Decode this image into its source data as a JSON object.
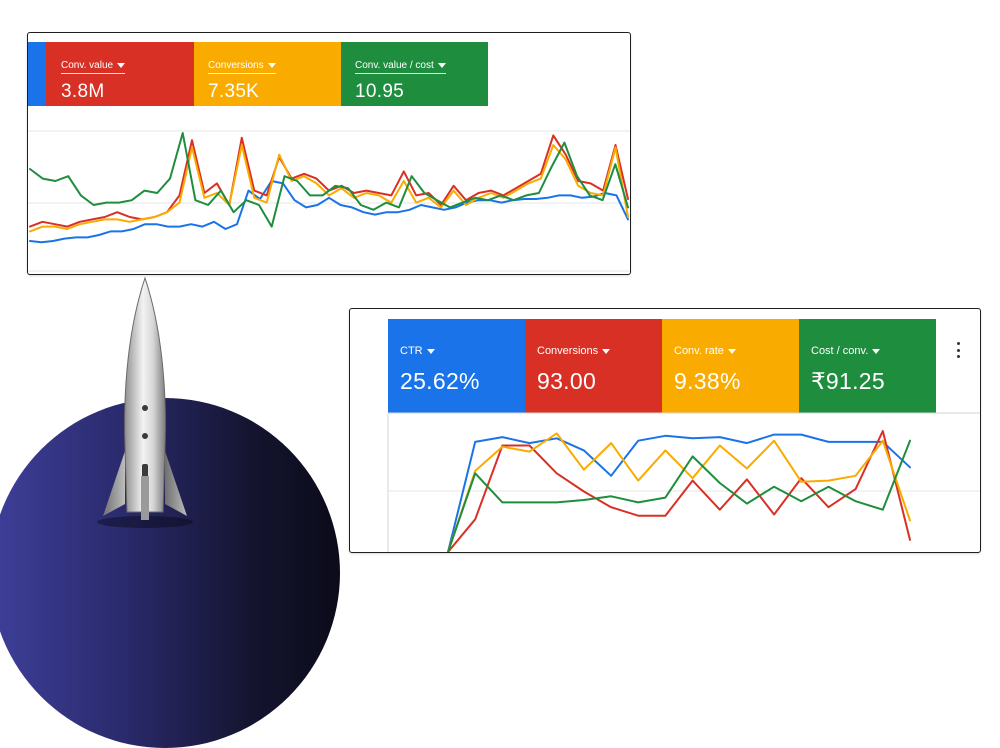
{
  "card1": {
    "metrics": [
      {
        "label": "",
        "value": "",
        "color": "#1a73e8"
      },
      {
        "label": "Conv. value",
        "value": "3.8M",
        "color": "#d93025"
      },
      {
        "label": "Conversions",
        "value": "7.35K",
        "color": "#f9ab00"
      },
      {
        "label": "Conv. value / cost",
        "value": "10.95",
        "color": "#1e8e3e"
      }
    ]
  },
  "card2": {
    "metrics": [
      {
        "label": "CTR",
        "value": "25.62%",
        "color": "#1a73e8"
      },
      {
        "label": "Conversions",
        "value": "93.00",
        "color": "#d93025"
      },
      {
        "label": "Conv. rate",
        "value": "9.38%",
        "color": "#f9ab00"
      },
      {
        "label": "Cost / conv.",
        "value": "₹91.25",
        "color": "#1e8e3e"
      }
    ],
    "menu_icon": "more-vertical-icon"
  },
  "chart_data": [
    {
      "type": "line",
      "title": "",
      "xlabel": "",
      "ylabel": "",
      "ylim": [
        0,
        100
      ],
      "grid": true,
      "series": [
        {
          "color": "#1a73e8",
          "values": [
            10,
            9,
            10,
            12,
            13,
            13,
            15,
            18,
            18,
            20,
            24,
            24,
            22,
            22,
            24,
            22,
            26,
            20,
            24,
            52,
            45,
            60,
            58,
            44,
            38,
            40,
            46,
            40,
            38,
            34,
            32,
            34,
            34,
            36,
            40,
            38,
            36,
            38,
            42,
            44,
            44,
            42,
            44,
            45,
            45,
            46,
            48,
            48,
            46,
            47,
            50,
            48,
            28
          ]
        },
        {
          "color": "#d93025",
          "values": [
            22,
            26,
            24,
            22,
            26,
            28,
            30,
            34,
            30,
            28,
            30,
            34,
            48,
            94,
            50,
            58,
            40,
            96,
            52,
            48,
            80,
            62,
            66,
            62,
            52,
            56,
            50,
            52,
            50,
            48,
            68,
            48,
            50,
            40,
            56,
            44,
            50,
            52,
            48,
            54,
            60,
            66,
            98,
            82,
            60,
            58,
            52,
            90,
            45
          ]
        },
        {
          "color": "#f9ab00",
          "values": [
            18,
            22,
            22,
            20,
            24,
            26,
            28,
            28,
            26,
            28,
            30,
            34,
            42,
            88,
            46,
            50,
            40,
            90,
            46,
            42,
            82,
            60,
            64,
            58,
            48,
            54,
            46,
            50,
            48,
            42,
            60,
            42,
            46,
            38,
            52,
            40,
            46,
            50,
            46,
            52,
            58,
            62,
            90,
            78,
            56,
            50,
            48,
            88,
            30
          ]
        },
        {
          "color": "#1e8e3e",
          "values": [
            70,
            62,
            60,
            64,
            48,
            40,
            42,
            42,
            44,
            52,
            50,
            62,
            100,
            44,
            40,
            52,
            34,
            44,
            40,
            22,
            64,
            60,
            48,
            48,
            56,
            54,
            40,
            36,
            42,
            38,
            64,
            50,
            44,
            38,
            42,
            46,
            44,
            48,
            44,
            48,
            50,
            72,
            92,
            64,
            48,
            44,
            74,
            38
          ]
        }
      ]
    },
    {
      "type": "line",
      "title": "",
      "xlabel": "",
      "ylabel": "",
      "ylim": [
        0,
        100
      ],
      "grid": true,
      "series": [
        {
          "color": "#1a73e8",
          "values": [
            0,
            91,
            95,
            90,
            94,
            84,
            63,
            92,
            96,
            94,
            95,
            90,
            97,
            97,
            91,
            91,
            91,
            70
          ]
        },
        {
          "color": "#d93025",
          "values": [
            0,
            27,
            88,
            88,
            65,
            50,
            37,
            30,
            30,
            59,
            35,
            60,
            31,
            61,
            37,
            52,
            100,
            10
          ]
        },
        {
          "color": "#f9ab00",
          "values": [
            0,
            67,
            87,
            83,
            98,
            68,
            90,
            59,
            84,
            61,
            88,
            69,
            92,
            58,
            59,
            63,
            92,
            26
          ]
        },
        {
          "color": "#1e8e3e",
          "values": [
            0,
            65,
            41,
            41,
            41,
            43,
            46,
            41,
            45,
            79,
            57,
            40,
            54,
            42,
            54,
            42,
            35,
            92
          ]
        }
      ]
    }
  ]
}
